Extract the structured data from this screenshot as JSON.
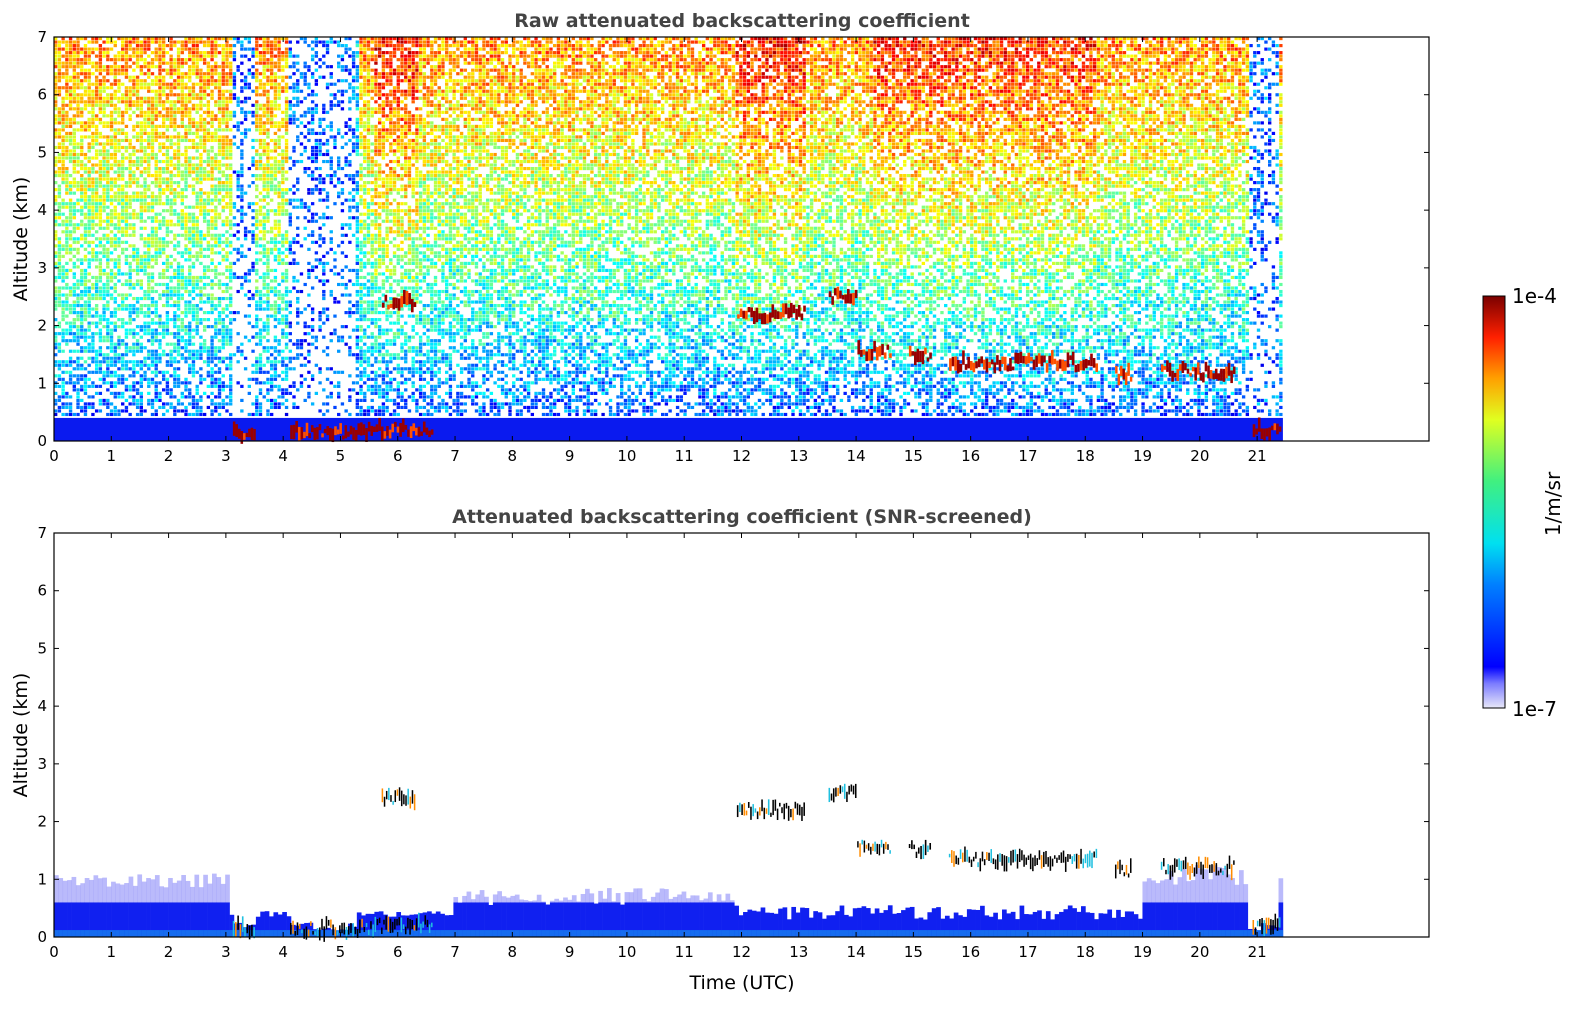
{
  "chart_data": [
    {
      "type": "heatmap",
      "title": "Raw attenuated backscattering coefficient",
      "xlabel": "",
      "ylabel": "Altitude (km)",
      "xlim": [
        0,
        24
      ],
      "ylim": [
        0,
        7
      ],
      "xticks": [
        "0",
        "1",
        "2",
        "3",
        "4",
        "5",
        "6",
        "7",
        "8",
        "9",
        "10",
        "11",
        "12",
        "13",
        "14",
        "15",
        "16",
        "17",
        "18",
        "19",
        "20",
        "21"
      ],
      "yticks": [
        "0",
        "1",
        "2",
        "3",
        "4",
        "5",
        "6",
        "7"
      ],
      "data_end_time": 21.45,
      "colorscale": "log",
      "cloud_layers": [
        {
          "t0": 3.1,
          "t1": 3.5,
          "alt": 0.15
        },
        {
          "t0": 4.1,
          "t1": 5.5,
          "alt": 0.15
        },
        {
          "t0": 5.5,
          "t1": 6.6,
          "alt": 0.2
        },
        {
          "t0": 5.7,
          "t1": 6.3,
          "alt": 2.42
        },
        {
          "t0": 11.9,
          "t1": 13.1,
          "alt": 2.2
        },
        {
          "t0": 13.5,
          "t1": 14.0,
          "alt": 2.5
        },
        {
          "t0": 14.0,
          "t1": 14.6,
          "alt": 1.55
        },
        {
          "t0": 14.9,
          "t1": 15.3,
          "alt": 1.5
        },
        {
          "t0": 15.6,
          "t1": 18.2,
          "alt": 1.35
        },
        {
          "t0": 18.5,
          "t1": 18.8,
          "alt": 1.15
        },
        {
          "t0": 19.3,
          "t1": 20.6,
          "alt": 1.2
        },
        {
          "t0": 20.9,
          "t1": 21.4,
          "alt": 0.2
        }
      ]
    },
    {
      "type": "heatmap",
      "title": "Attenuated backscattering coefficient (SNR-screened)",
      "xlabel": "Time (UTC)",
      "ylabel": "Altitude (km)",
      "xlim": [
        0,
        24
      ],
      "ylim": [
        0,
        7
      ],
      "xticks": [
        "0",
        "1",
        "2",
        "3",
        "4",
        "5",
        "6",
        "7",
        "8",
        "9",
        "10",
        "11",
        "12",
        "13",
        "14",
        "15",
        "16",
        "17",
        "18",
        "19",
        "20",
        "21"
      ],
      "yticks": [
        "0",
        "1",
        "2",
        "3",
        "4",
        "5",
        "6",
        "7"
      ],
      "data_end_time": 21.45,
      "colorscale": "log"
    }
  ],
  "colorbar": {
    "label": "1/m/sr",
    "max_label": "1e-4",
    "min_label": "1e-7",
    "colormap": "jet"
  }
}
